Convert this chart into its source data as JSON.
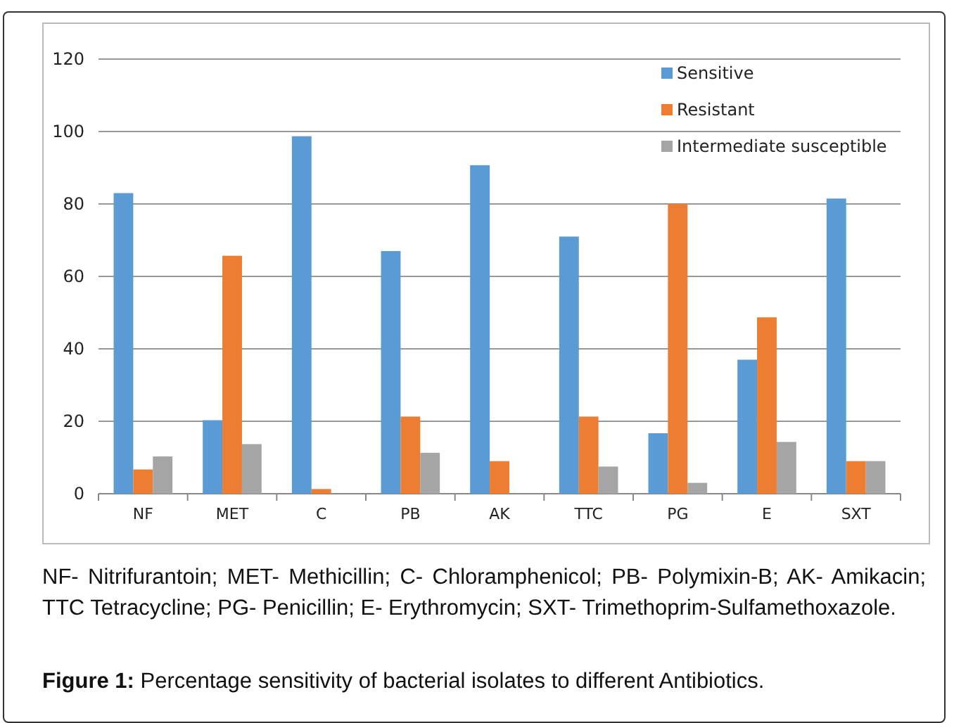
{
  "chart_data": {
    "type": "bar",
    "title": "Figure 1: Percentage sensitivity of bacterial isolates to different Antibiotics.",
    "categories": [
      "NF",
      "MET",
      "C",
      "PB",
      "AK",
      "TTC",
      "PG",
      "E",
      "SXT"
    ],
    "series": [
      {
        "name": "Sensitive",
        "color": "#5b9bd5",
        "values": [
          83,
          20.3,
          98.7,
          67,
          90.7,
          71,
          16.7,
          37,
          81.5
        ]
      },
      {
        "name": "Resistant",
        "color": "#ed7d31",
        "values": [
          6.7,
          65.7,
          1.3,
          21.3,
          9,
          21.3,
          80,
          48.7,
          9
        ]
      },
      {
        "name": "Intermediate susceptible",
        "color": "#a5a5a5",
        "values": [
          10.3,
          13.7,
          0,
          11.3,
          0,
          7.5,
          3,
          14.3,
          9
        ]
      }
    ],
    "ylim": [
      0,
      120
    ],
    "yticks": [
      0,
      20,
      40,
      60,
      80,
      100,
      120
    ],
    "grid": "y",
    "legend": "top right",
    "annotations": [
      "NF- Nitrifurantoin; MET- Methicillin; C- Chloramphenicol; PB- Polymixin-B; AK- Amikacin; TTC Tetracycline; PG- Penicillin; E- Erythromycin; SXT- Trimethoprim-Sulfamethoxazole."
    ]
  }
}
